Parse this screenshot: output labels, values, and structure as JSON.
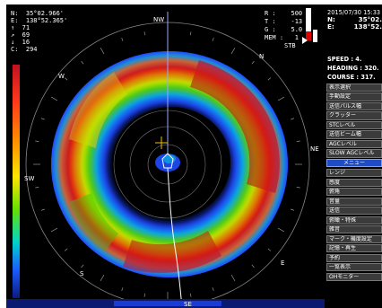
{
  "top_left": {
    "lines": [
      "N:  35°02.966'",
      "E:  138°52.365'",
      "↑  71",
      "↗  69",
      "↓  16",
      "C:  294"
    ]
  },
  "top_right": {
    "R": "R :    500",
    "T": "T :    -13",
    "G": "G :    5.0",
    "MEM": "MEM :   1",
    "STB": "STB"
  },
  "compass": {
    "NW": "NW",
    "N": "N",
    "W": "W",
    "NE": "NE",
    "SW": "SW",
    "E": "E",
    "S": "S",
    "SE": "SE"
  },
  "panel": {
    "datetime": "2015/07/30 15:33",
    "lat_label": "N:",
    "lat_value": "35°02.",
    "lon_label": "E:",
    "lon_value": "138°52.",
    "speed": "SPEED    :  4.",
    "heading": "HEADING : 320.",
    "course": "COURSE  : 317."
  },
  "menu": [
    {
      "label": "表示選択",
      "active": false
    },
    {
      "label": "手動設定",
      "active": false
    },
    {
      "label": "送信パルス幅",
      "active": false
    },
    {
      "label": "クラッター",
      "active": false
    },
    {
      "label": "STCレベル",
      "active": false
    },
    {
      "label": "送信ビーム幅",
      "active": false
    },
    {
      "label": "AGCレベル",
      "active": false
    },
    {
      "label": "SLOW AGCレベル",
      "active": false
    },
    {
      "label": "メニュー",
      "active": true
    },
    {
      "label": "レンジ",
      "active": false
    },
    {
      "label": "感度",
      "active": false
    },
    {
      "label": "俯角",
      "active": false
    },
    {
      "label": "音量",
      "active": false
    },
    {
      "label": "送信",
      "active": false
    },
    {
      "label": "俯瞰・特殊",
      "active": false
    },
    {
      "label": "雑音",
      "active": false
    },
    {
      "label": "マーク・機度設定",
      "active": false
    },
    {
      "label": "記憶・再生",
      "active": false
    },
    {
      "label": "予約",
      "active": false
    },
    {
      "label": "一覧表示",
      "active": false
    },
    {
      "label": "OHモニター",
      "active": false
    }
  ],
  "colors": {
    "ring_red": "#d61a12",
    "ring_yellow": "#f4e200",
    "ring_green": "#55d800",
    "ring_cyan": "#00c8d8",
    "ring_blue": "#1f4cff",
    "menu_active": "#1f4cc4",
    "cursor": "#f0c000"
  }
}
